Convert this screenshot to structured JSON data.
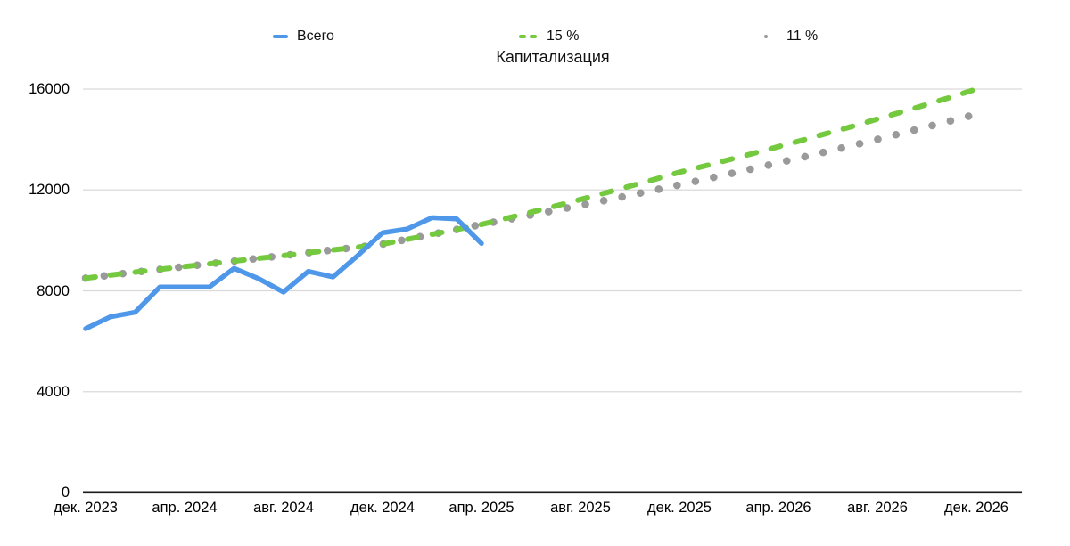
{
  "title": "Капитализация",
  "legend": {
    "items": [
      {
        "label": "Всего",
        "swatch": "solid-line",
        "color": "#4f97e8"
      },
      {
        "label": "15 %",
        "swatch": "dashed-line",
        "color": "#74c93f"
      },
      {
        "label": "11 %",
        "swatch": "dotted-line",
        "color": "#9a9a9a"
      }
    ]
  },
  "colors": {
    "blue": "#4f97e8",
    "green": "#74c93f",
    "gray": "#9a9a9a",
    "gridline": "#d9d9d9",
    "axis": "#1a1a1a",
    "background": "#ffffff"
  },
  "chart_data": {
    "type": "line",
    "title": "Капитализация",
    "x_unit": "month",
    "x_start": "дек. 2023",
    "x_tick_labels": [
      "дек. 2023",
      "апр. 2024",
      "авг. 2024",
      "дек. 2024",
      "апр. 2025",
      "авг. 2025",
      "дек. 2025",
      "апр. 2026",
      "авг. 2026",
      "дек. 2026"
    ],
    "y_tick_labels": [
      "16000",
      "12000",
      "8000",
      "4000",
      "0"
    ],
    "y_ticks": [
      0,
      4000,
      8000,
      12000,
      16000
    ],
    "ylim": [
      0,
      16000
    ],
    "grid": true,
    "legend_position": "top",
    "series": [
      {
        "name": "Всего",
        "style": "solid",
        "color": "#4f97e8",
        "values": [
          6500,
          6970,
          7150,
          8150,
          8150,
          8150,
          8890,
          8480,
          7950,
          8770,
          8550,
          9400,
          10300,
          10450,
          10900,
          10850,
          9880
        ]
      },
      {
        "name": "15 %",
        "style": "dashed",
        "color": "#74c93f",
        "values": [
          8500,
          8620,
          8740,
          8850,
          8960,
          9070,
          9180,
          9290,
          9400,
          9510,
          9620,
          9730,
          9850,
          10040,
          10240,
          10430,
          10630,
          10870,
          11115,
          11365,
          11620,
          11880,
          12150,
          12420,
          12700,
          12945,
          13195,
          13455,
          13715,
          13980,
          14250,
          14525,
          14810,
          15095,
          15390,
          15685,
          16000
        ]
      },
      {
        "name": "11 %",
        "style": "dotted",
        "color": "#9a9a9a",
        "values": [
          8500,
          8620,
          8740,
          8850,
          8960,
          9070,
          9180,
          9290,
          9400,
          9510,
          9620,
          9730,
          9850,
          10040,
          10240,
          10430,
          10630,
          10815,
          11005,
          11195,
          11390,
          11585,
          11790,
          11995,
          12200,
          12415,
          12630,
          12850,
          13075,
          13300,
          13530,
          13765,
          14005,
          14250,
          14500,
          14750,
          15000
        ]
      }
    ]
  }
}
